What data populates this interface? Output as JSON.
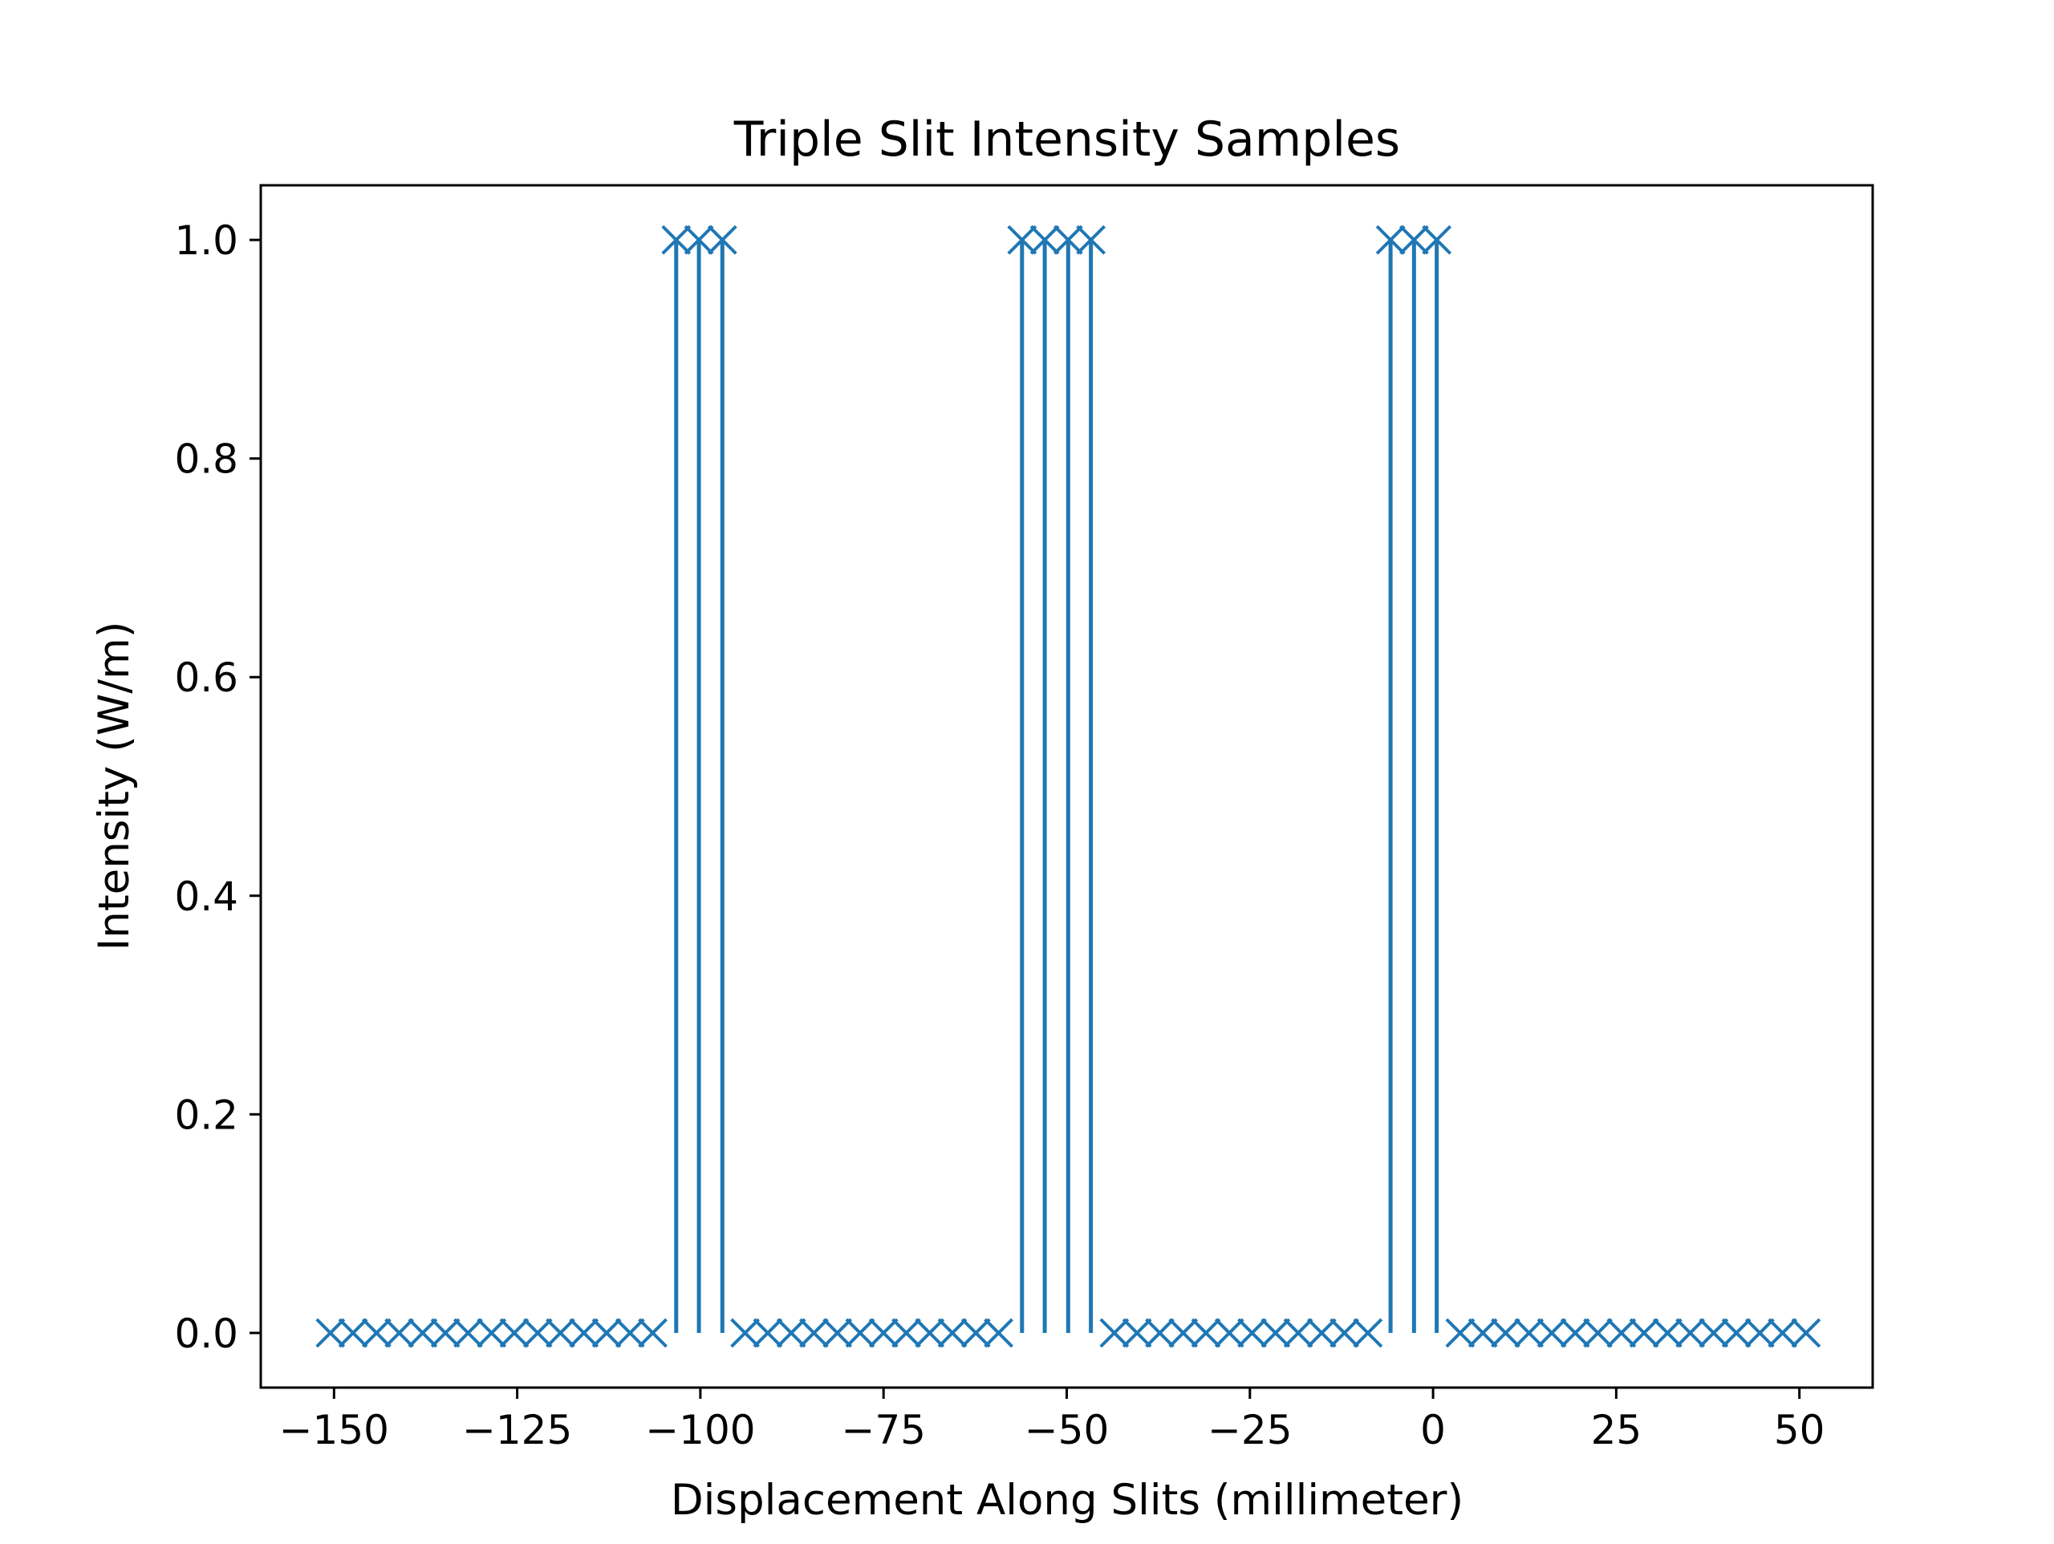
{
  "chart_data": {
    "type": "scatter",
    "title": "Triple Slit Intensity Samples",
    "xlabel": "Displacement Along Slits (millimeter)",
    "ylabel": "Intensity (W/m)",
    "xlim": [
      -160,
      60
    ],
    "ylim": [
      -0.05,
      1.05
    ],
    "xticks": [
      -150,
      -125,
      -100,
      -75,
      -50,
      -25,
      0,
      25,
      50
    ],
    "xtick_labels": [
      "−150",
      "−125",
      "−100",
      "−75",
      "−50",
      "−25",
      "0",
      "25",
      "50"
    ],
    "yticks": [
      0.0,
      0.2,
      0.4,
      0.6,
      0.8,
      1.0
    ],
    "ytick_labels": [
      "0.0",
      "0.2",
      "0.4",
      "0.6",
      "0.8",
      "1.0"
    ],
    "grid": false,
    "series": [
      {
        "marker": "x",
        "color": "#1f77b4",
        "x": [
          -150.5,
          -147.4,
          -144.2,
          -141.1,
          -137.9,
          -134.8,
          -131.7,
          -128.5,
          -125.4,
          -122.2,
          -119.1,
          -115.9,
          -112.8,
          -109.6,
          -106.5,
          -103.3,
          -100.2,
          -97.0,
          -93.9,
          -90.8,
          -87.6,
          -84.5,
          -81.3,
          -78.2,
          -75.0,
          -71.9,
          -68.7,
          -65.6,
          -62.4,
          -59.3,
          -56.1,
          -53.0,
          -49.8,
          -46.7,
          -43.5,
          -40.4,
          -37.3,
          -34.1,
          -31.0,
          -27.8,
          -24.7,
          -21.5,
          -18.4,
          -15.2,
          -12.1,
          -8.9,
          -5.8,
          -2.6,
          0.5,
          3.7,
          6.8,
          9.9,
          13.1,
          16.2,
          19.4,
          22.5,
          25.7,
          28.8,
          32.0,
          35.1,
          38.3,
          41.4,
          44.6,
          47.7,
          50.9
        ],
        "y": [
          0,
          0,
          0,
          0,
          0,
          0,
          0,
          0,
          0,
          0,
          0,
          0,
          0,
          0,
          0,
          1,
          1,
          1,
          0,
          0,
          0,
          0,
          0,
          0,
          0,
          0,
          0,
          0,
          0,
          0,
          1,
          1,
          1,
          1,
          0,
          0,
          0,
          0,
          0,
          0,
          0,
          0,
          0,
          0,
          0,
          0,
          1,
          1,
          1,
          0,
          0,
          0,
          0,
          0,
          0,
          0,
          0,
          0,
          0,
          0,
          0,
          0,
          0,
          0,
          0
        ]
      }
    ]
  }
}
